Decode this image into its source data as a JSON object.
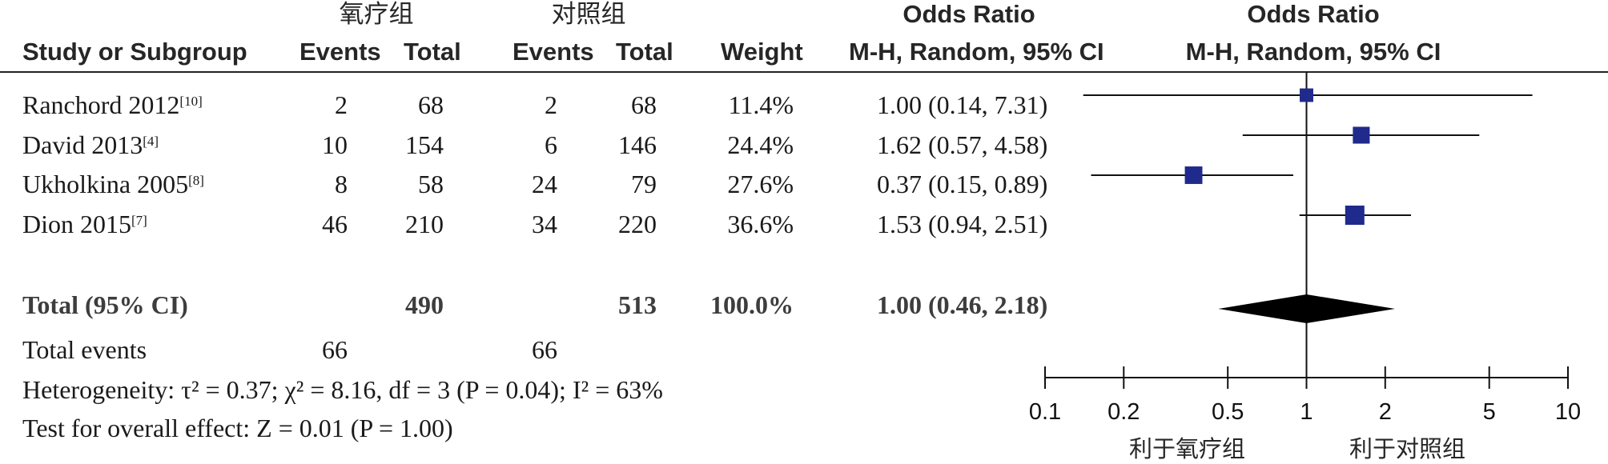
{
  "headers": {
    "group1": "氧疗组",
    "group2": "对照组",
    "or_top_1": "Odds Ratio",
    "or_top_2": "Odds Ratio",
    "study": "Study or Subgroup",
    "events1": "Events",
    "total1": "Total",
    "events2": "Events",
    "total2": "Total",
    "weight": "Weight",
    "method_1": "M-H, Random, 95% CI",
    "method_2": "M-H, Random, 95% CI"
  },
  "studies": [
    {
      "name": "Ranchord 2012",
      "ref": "[10]",
      "events1": "2",
      "total1": "68",
      "events2": "2",
      "total2": "68",
      "weight": "11.4%",
      "ci_text": "1.00 (0.14, 7.31)"
    },
    {
      "name": "David 2013",
      "ref": "[4]",
      "events1": "10",
      "total1": "154",
      "events2": "6",
      "total2": "146",
      "weight": "24.4%",
      "ci_text": "1.62 (0.57, 4.58)"
    },
    {
      "name": "Ukholkina 2005",
      "ref": "[8]",
      "events1": "8",
      "total1": "58",
      "events2": "24",
      "total2": "79",
      "weight": "27.6%",
      "ci_text": "0.37 (0.15, 0.89)"
    },
    {
      "name": "Dion 2015",
      "ref": "[7]",
      "events1": "46",
      "total1": "210",
      "events2": "34",
      "total2": "220",
      "weight": "36.6%",
      "ci_text": "1.53 (0.94, 2.51)"
    }
  ],
  "total": {
    "label": "Total (95% CI)",
    "total1": "490",
    "total2": "513",
    "weight": "100.0%",
    "ci_text": "1.00 (0.46, 2.18)"
  },
  "total_events": {
    "label": "Total events",
    "events1": "66",
    "events2": "66"
  },
  "heterogeneity": "Heterogeneity: τ² = 0.37; χ² = 8.16, df = 3 (P = 0.04); I² = 63%",
  "overall_effect": "Test for overall effect: Z = 0.01 (P = 1.00)",
  "axis": {
    "favors_left": "利于氧疗组",
    "favors_right": "利于对照组"
  },
  "colors": {
    "square": "#1f2a8c",
    "line": "#111111",
    "diamond": "#000000"
  },
  "chart_data": {
    "type": "forest",
    "scale": "log",
    "xlim": [
      0.1,
      10
    ],
    "ticks": [
      0.1,
      0.2,
      0.5,
      1,
      2,
      5,
      10
    ],
    "tick_labels": [
      "0.1",
      "0.2",
      "0.5",
      "1",
      "2",
      "5",
      "10"
    ],
    "reference_line": 1,
    "studies": [
      {
        "name": "Ranchord 2012",
        "or": 1.0,
        "lower": 0.14,
        "upper": 7.31,
        "weight": 11.4
      },
      {
        "name": "David 2013",
        "or": 1.62,
        "lower": 0.57,
        "upper": 4.58,
        "weight": 24.4
      },
      {
        "name": "Ukholkina 2005",
        "or": 0.37,
        "lower": 0.15,
        "upper": 0.89,
        "weight": 27.6
      },
      {
        "name": "Dion 2015",
        "or": 1.53,
        "lower": 0.94,
        "upper": 2.51,
        "weight": 36.6
      }
    ],
    "pooled": {
      "or": 1.0,
      "lower": 0.46,
      "upper": 2.18
    }
  }
}
